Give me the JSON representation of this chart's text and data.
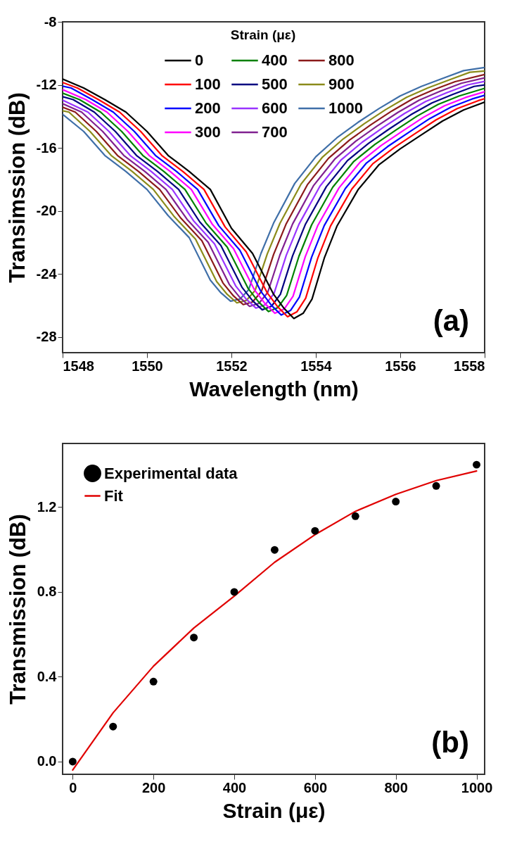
{
  "chart_data": [
    {
      "type": "line",
      "xlabel": "Wavelength (nm)",
      "ylabel": "Transimssion (dB)",
      "legend_title": "Strain (με)",
      "legend": "top",
      "xlim": [
        1548,
        1558
      ],
      "ylim": [
        -29,
        -8
      ],
      "xticks": [
        1548,
        1550,
        1552,
        1554,
        1556,
        1558
      ],
      "yticks": [
        -8,
        -12,
        -16,
        -20,
        -24,
        -28
      ],
      "annotations": [
        "(a)"
      ],
      "series": [
        {
          "name": "0",
          "color": "#000000",
          "x": [
            1548,
            1548.5,
            1549,
            1549.5,
            1550,
            1550.5,
            1551,
            1551.5,
            1552,
            1552.5,
            1553,
            1553.25,
            1553.48,
            1553.7,
            1553.91,
            1554.2,
            1554.5,
            1555,
            1555.5,
            1556,
            1556.5,
            1557,
            1557.5,
            1558
          ],
          "values": [
            -11.63,
            -12.2,
            -12.94,
            -13.73,
            -14.96,
            -16.48,
            -17.5,
            -18.64,
            -21.1,
            -22.7,
            -25.3,
            -26.2,
            -26.83,
            -26.5,
            -25.6,
            -23.0,
            -20.97,
            -18.66,
            -17.06,
            -16.06,
            -15.18,
            -14.3,
            -13.6,
            -13.1
          ]
        },
        {
          "name": "100",
          "color": "#ff0000",
          "x": [
            1548,
            1548.35,
            1548.85,
            1549.35,
            1549.85,
            1550.35,
            1550.85,
            1551.35,
            1551.85,
            1552.35,
            1552.85,
            1553.1,
            1553.33,
            1553.55,
            1553.76,
            1554.05,
            1554.35,
            1554.85,
            1555.35,
            1555.85,
            1556.35,
            1556.85,
            1557.35,
            1557.85,
            1558
          ],
          "values": [
            -11.85,
            -12.2,
            -12.94,
            -13.73,
            -14.96,
            -16.48,
            -17.5,
            -18.64,
            -21.02,
            -22.6,
            -25.21,
            -26.1,
            -26.72,
            -26.41,
            -25.54,
            -22.97,
            -20.95,
            -18.62,
            -17.01,
            -15.99,
            -15.1,
            -14.22,
            -13.51,
            -13.0,
            -12.88
          ]
        },
        {
          "name": "200",
          "color": "#0000ff",
          "x": [
            1548,
            1548.2,
            1548.7,
            1549.2,
            1549.7,
            1550.2,
            1550.7,
            1551.2,
            1551.7,
            1552.2,
            1552.7,
            1552.95,
            1553.18,
            1553.4,
            1553.61,
            1553.9,
            1554.2,
            1554.7,
            1555.2,
            1555.7,
            1556.2,
            1556.7,
            1557.2,
            1557.7,
            1558
          ],
          "values": [
            -12.08,
            -12.2,
            -12.94,
            -13.73,
            -14.96,
            -16.48,
            -17.5,
            -18.64,
            -20.94,
            -22.5,
            -25.12,
            -26.0,
            -26.61,
            -26.32,
            -25.48,
            -22.94,
            -20.93,
            -18.58,
            -16.96,
            -15.92,
            -15.02,
            -14.14,
            -13.42,
            -12.9,
            -12.66
          ]
        },
        {
          "name": "300",
          "color": "#ff00ff",
          "x": [
            1548,
            1548.55,
            1549.05,
            1549.55,
            1550.05,
            1550.55,
            1551.05,
            1551.55,
            1552.05,
            1552.55,
            1552.8,
            1553.03,
            1553.25,
            1553.46,
            1553.75,
            1554.05,
            1554.55,
            1555.05,
            1555.55,
            1556.05,
            1556.55,
            1557.05,
            1557.55,
            1558
          ],
          "values": [
            -12.3,
            -12.94,
            -13.73,
            -14.96,
            -16.48,
            -17.5,
            -18.64,
            -20.86,
            -22.4,
            -25.03,
            -25.9,
            -26.5,
            -26.23,
            -25.42,
            -22.91,
            -20.91,
            -18.54,
            -16.91,
            -15.85,
            -14.94,
            -14.06,
            -13.33,
            -12.8,
            -12.44
          ]
        },
        {
          "name": "400",
          "color": "#008000",
          "x": [
            1548,
            1548.4,
            1548.9,
            1549.4,
            1549.9,
            1550.4,
            1550.9,
            1551.4,
            1551.9,
            1552.4,
            1552.65,
            1552.88,
            1553.1,
            1553.31,
            1553.6,
            1553.9,
            1554.4,
            1554.9,
            1555.4,
            1555.9,
            1556.4,
            1556.9,
            1557.4,
            1558
          ],
          "values": [
            -12.53,
            -12.94,
            -13.73,
            -14.96,
            -16.48,
            -17.5,
            -18.64,
            -20.78,
            -22.3,
            -24.94,
            -25.8,
            -26.39,
            -26.14,
            -25.36,
            -22.88,
            -20.89,
            -18.5,
            -16.86,
            -15.78,
            -14.86,
            -13.98,
            -13.24,
            -12.7,
            -12.22
          ]
        },
        {
          "name": "500",
          "color": "#000080",
          "x": [
            1548,
            1548.25,
            1548.75,
            1549.25,
            1549.75,
            1550.25,
            1550.75,
            1551.25,
            1551.75,
            1552.25,
            1552.5,
            1552.73,
            1552.95,
            1553.16,
            1553.45,
            1553.75,
            1554.25,
            1554.75,
            1555.25,
            1555.75,
            1556.25,
            1556.75,
            1557.25,
            1557.75,
            1558
          ],
          "values": [
            -12.75,
            -12.94,
            -13.73,
            -14.96,
            -16.48,
            -17.5,
            -18.64,
            -20.7,
            -22.2,
            -24.85,
            -25.7,
            -26.28,
            -26.05,
            -25.3,
            -22.85,
            -20.87,
            -18.46,
            -16.81,
            -15.71,
            -14.78,
            -13.9,
            -13.15,
            -12.6,
            -12.1,
            -12.0
          ]
        },
        {
          "name": "600",
          "color": "#9933ff",
          "x": [
            1548,
            1548.6,
            1549.1,
            1549.6,
            1550.1,
            1550.6,
            1551.1,
            1551.6,
            1552.1,
            1552.35,
            1552.58,
            1552.8,
            1553.01,
            1553.3,
            1553.6,
            1554.1,
            1554.6,
            1555.1,
            1555.6,
            1556.1,
            1556.6,
            1557.1,
            1557.6,
            1558
          ],
          "values": [
            -12.97,
            -13.73,
            -14.96,
            -16.48,
            -17.5,
            -18.64,
            -20.62,
            -22.1,
            -24.76,
            -25.6,
            -26.17,
            -25.96,
            -25.24,
            -22.82,
            -20.85,
            -18.42,
            -16.76,
            -15.64,
            -14.7,
            -13.82,
            -13.06,
            -12.5,
            -12.0,
            -11.78
          ]
        },
        {
          "name": "700",
          "color": "#802090",
          "x": [
            1548,
            1548.45,
            1548.95,
            1549.45,
            1549.95,
            1550.45,
            1550.95,
            1551.45,
            1551.95,
            1552.2,
            1552.43,
            1552.65,
            1552.86,
            1553.15,
            1553.45,
            1553.95,
            1554.45,
            1554.95,
            1555.45,
            1555.95,
            1556.45,
            1556.95,
            1557.45,
            1558
          ],
          "values": [
            -13.2,
            -13.73,
            -14.96,
            -16.48,
            -17.5,
            -18.64,
            -20.54,
            -22.0,
            -24.67,
            -25.5,
            -26.06,
            -25.87,
            -25.18,
            -22.79,
            -20.83,
            -18.38,
            -16.71,
            -15.57,
            -14.62,
            -13.74,
            -12.97,
            -12.4,
            -11.9,
            -11.56
          ]
        },
        {
          "name": "800",
          "color": "#8b1a1a",
          "x": [
            1548,
            1548.3,
            1548.8,
            1549.3,
            1549.8,
            1550.3,
            1550.8,
            1551.3,
            1551.8,
            1552.05,
            1552.28,
            1552.5,
            1552.71,
            1553.0,
            1553.3,
            1553.8,
            1554.3,
            1554.8,
            1555.3,
            1555.8,
            1556.3,
            1556.8,
            1557.3,
            1558
          ],
          "values": [
            -13.42,
            -13.73,
            -14.96,
            -16.48,
            -17.5,
            -18.64,
            -20.46,
            -21.9,
            -24.58,
            -25.4,
            -25.95,
            -25.78,
            -25.12,
            -22.76,
            -20.81,
            -18.34,
            -16.66,
            -15.5,
            -14.54,
            -13.66,
            -12.88,
            -12.3,
            -11.8,
            -11.34
          ]
        },
        {
          "name": "900",
          "color": "#8b8b1a",
          "x": [
            1548,
            1548.15,
            1548.65,
            1549.15,
            1549.65,
            1550.15,
            1550.65,
            1551.15,
            1551.65,
            1551.9,
            1552.13,
            1552.35,
            1552.56,
            1552.85,
            1553.15,
            1553.65,
            1554.15,
            1554.65,
            1555.15,
            1555.65,
            1556.15,
            1556.65,
            1557.15,
            1557.65,
            1558
          ],
          "values": [
            -13.65,
            -13.73,
            -14.96,
            -16.48,
            -17.5,
            -18.64,
            -20.38,
            -21.8,
            -24.49,
            -25.3,
            -25.84,
            -25.69,
            -25.06,
            -22.73,
            -20.79,
            -18.3,
            -16.61,
            -15.43,
            -14.46,
            -13.58,
            -12.79,
            -12.2,
            -11.7,
            -11.2,
            -11.12
          ]
        },
        {
          "name": "1000",
          "color": "#3f6fa8",
          "x": [
            1548,
            1548.5,
            1549,
            1549.5,
            1550,
            1550.5,
            1551,
            1551.5,
            1551.75,
            1551.98,
            1552.2,
            1552.41,
            1552.7,
            1553,
            1553.5,
            1554,
            1554.5,
            1555,
            1555.5,
            1556,
            1556.5,
            1557,
            1557.5,
            1558
          ],
          "values": [
            -13.87,
            -14.96,
            -16.48,
            -17.5,
            -18.64,
            -20.3,
            -21.7,
            -24.4,
            -25.2,
            -25.73,
            -25.6,
            -25.0,
            -22.7,
            -20.77,
            -18.26,
            -16.56,
            -15.36,
            -14.38,
            -13.5,
            -12.7,
            -12.1,
            -11.6,
            -11.1,
            -10.9
          ]
        }
      ]
    },
    {
      "type": "scatter",
      "xlabel": "Strain (με)",
      "ylabel": "Transmission (dB)",
      "legend": "top left",
      "xlim": [
        -25,
        1020
      ],
      "ylim": [
        -0.06,
        1.5
      ],
      "xticks": [
        0,
        200,
        400,
        600,
        800,
        1000
      ],
      "yticks": [
        {
          "value": 0,
          "label": "0.0"
        },
        0.4,
        0.8,
        1.2
      ],
      "annotations": [
        "(b)"
      ],
      "series": [
        {
          "name": "Experimental data",
          "type": "scatter",
          "marker": "circle",
          "color": "#000000",
          "x": [
            0,
            100,
            200,
            300,
            400,
            500,
            600,
            700,
            800,
            900,
            1000
          ],
          "values": [
            0.0,
            0.165,
            0.377,
            0.585,
            0.8,
            0.998,
            1.088,
            1.157,
            1.226,
            1.3,
            1.4
          ]
        },
        {
          "name": "Fit",
          "type": "line",
          "color": "#e00000",
          "x": [
            0,
            100,
            200,
            300,
            400,
            500,
            600,
            700,
            800,
            900,
            1000
          ],
          "values": [
            -0.04,
            0.23,
            0.45,
            0.63,
            0.78,
            0.94,
            1.07,
            1.18,
            1.26,
            1.325,
            1.37
          ]
        }
      ]
    }
  ]
}
